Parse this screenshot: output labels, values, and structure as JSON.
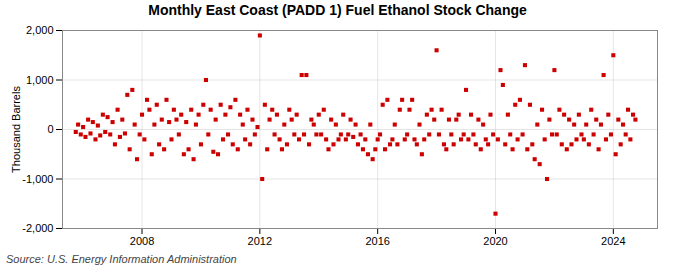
{
  "chart_data": {
    "type": "scatter",
    "title": "Monthly East Coast (PADD 1) Fuel Ethanol Stock Change",
    "ylabel": "Thousand Barrels",
    "source": "Source: U.S. Energy Information Administration",
    "color": "#cc0000",
    "marker": "square",
    "grid": true,
    "xlim": [
      2005.3,
      2025.5
    ],
    "xticks": [
      2008,
      2012,
      2016,
      2020,
      2024
    ],
    "ylim": [
      -2000,
      2000
    ],
    "yticks": [
      {
        "value": -2000,
        "label": "-2,000"
      },
      {
        "value": -1000,
        "label": "-1,000"
      },
      0,
      {
        "value": 1000,
        "label": "1,000"
      },
      {
        "value": 2000,
        "label": "2,000"
      }
    ],
    "x": [
      2005.75,
      2005.83,
      2005.92,
      2006,
      2006.08,
      2006.17,
      2006.25,
      2006.33,
      2006.42,
      2006.5,
      2006.58,
      2006.67,
      2006.75,
      2006.83,
      2006.92,
      2007,
      2007.08,
      2007.17,
      2007.25,
      2007.33,
      2007.42,
      2007.5,
      2007.58,
      2007.67,
      2007.75,
      2007.83,
      2007.92,
      2008,
      2008.08,
      2008.17,
      2008.25,
      2008.33,
      2008.42,
      2008.5,
      2008.58,
      2008.67,
      2008.75,
      2008.83,
      2008.92,
      2009,
      2009.08,
      2009.17,
      2009.25,
      2009.33,
      2009.42,
      2009.5,
      2009.58,
      2009.67,
      2009.75,
      2009.83,
      2009.92,
      2010,
      2010.08,
      2010.17,
      2010.25,
      2010.33,
      2010.42,
      2010.5,
      2010.58,
      2010.67,
      2010.75,
      2010.83,
      2010.92,
      2011,
      2011.08,
      2011.17,
      2011.25,
      2011.33,
      2011.42,
      2011.5,
      2011.58,
      2011.67,
      2011.75,
      2011.83,
      2011.92,
      2012,
      2012.08,
      2012.17,
      2012.25,
      2012.33,
      2012.42,
      2012.5,
      2012.58,
      2012.67,
      2012.75,
      2012.83,
      2012.92,
      2013,
      2013.08,
      2013.17,
      2013.25,
      2013.33,
      2013.42,
      2013.5,
      2013.58,
      2013.67,
      2013.75,
      2013.83,
      2013.92,
      2014,
      2014.08,
      2014.17,
      2014.25,
      2014.33,
      2014.42,
      2014.5,
      2014.58,
      2014.67,
      2014.75,
      2014.83,
      2014.92,
      2015,
      2015.08,
      2015.17,
      2015.25,
      2015.33,
      2015.42,
      2015.5,
      2015.58,
      2015.67,
      2015.75,
      2015.83,
      2015.92,
      2016,
      2016.08,
      2016.17,
      2016.25,
      2016.33,
      2016.42,
      2016.5,
      2016.58,
      2016.67,
      2016.75,
      2016.83,
      2016.92,
      2017,
      2017.08,
      2017.17,
      2017.25,
      2017.33,
      2017.42,
      2017.5,
      2017.58,
      2017.67,
      2017.75,
      2017.83,
      2017.92,
      2018,
      2018.08,
      2018.17,
      2018.25,
      2018.33,
      2018.42,
      2018.5,
      2018.58,
      2018.67,
      2018.75,
      2018.83,
      2018.92,
      2019,
      2019.08,
      2019.17,
      2019.25,
      2019.33,
      2019.42,
      2019.5,
      2019.58,
      2019.67,
      2019.75,
      2019.83,
      2019.92,
      2020,
      2020.08,
      2020.17,
      2020.25,
      2020.33,
      2020.42,
      2020.5,
      2020.58,
      2020.67,
      2020.75,
      2020.83,
      2020.92,
      2021,
      2021.08,
      2021.17,
      2021.25,
      2021.33,
      2021.42,
      2021.5,
      2021.58,
      2021.67,
      2021.75,
      2021.83,
      2021.92,
      2022,
      2022.08,
      2022.17,
      2022.25,
      2022.33,
      2022.42,
      2022.5,
      2022.58,
      2022.67,
      2022.75,
      2022.83,
      2022.92,
      2023,
      2023.08,
      2023.17,
      2023.25,
      2023.33,
      2023.42,
      2023.5,
      2023.58,
      2023.67,
      2023.75,
      2023.83,
      2023.92,
      2024,
      2024.08,
      2024.17,
      2024.25,
      2024.33,
      2024.42,
      2024.5,
      2024.58,
      2024.67,
      2024.75
    ],
    "values": [
      -50,
      100,
      -100,
      50,
      -150,
      200,
      -80,
      150,
      -200,
      80,
      -120,
      300,
      -50,
      250,
      -100,
      150,
      -300,
      400,
      -150,
      200,
      -80,
      700,
      -400,
      800,
      100,
      -600,
      -100,
      300,
      -200,
      600,
      400,
      -500,
      100,
      500,
      -300,
      200,
      -400,
      600,
      150,
      -200,
      400,
      200,
      -100,
      300,
      -500,
      150,
      -400,
      400,
      -600,
      100,
      300,
      -300,
      500,
      1000,
      -100,
      400,
      -450,
      200,
      -500,
      500,
      -200,
      300,
      -100,
      450,
      -300,
      600,
      -400,
      300,
      100,
      -200,
      400,
      -300,
      200,
      -100,
      50,
      1900,
      -1000,
      500,
      -400,
      200,
      400,
      -100,
      300,
      -200,
      -400,
      100,
      -300,
      400,
      200,
      -100,
      300,
      -200,
      1100,
      -100,
      1100,
      -300,
      200,
      100,
      -100,
      300,
      -100,
      400,
      -200,
      -400,
      200,
      -300,
      100,
      -200,
      -100,
      300,
      -200,
      -100,
      200,
      -150,
      100,
      -300,
      -100,
      -400,
      -200,
      -500,
      100,
      -600,
      -400,
      -200,
      -100,
      500,
      -400,
      600,
      -300,
      -200,
      100,
      -300,
      400,
      600,
      -200,
      -100,
      400,
      600,
      -200,
      -300,
      100,
      -500,
      -200,
      300,
      -100,
      400,
      200,
      1600,
      -100,
      400,
      -300,
      -400,
      200,
      -100,
      -300,
      200,
      300,
      -200,
      -100,
      800,
      -200,
      300,
      -100,
      -300,
      200,
      -400,
      100,
      -200,
      -300,
      300,
      -100,
      -1700,
      -200,
      1200,
      900,
      -300,
      300,
      -100,
      -400,
      500,
      -200,
      600,
      -100,
      1300,
      -400,
      500,
      -300,
      -600,
      100,
      -700,
      400,
      -200,
      -1000,
      200,
      -100,
      1200,
      -100,
      400,
      -300,
      300,
      -400,
      200,
      -300,
      100,
      -200,
      300,
      -100,
      -200,
      100,
      -300,
      400,
      -100,
      200,
      -400,
      100,
      1100,
      -200,
      300,
      -100,
      1500,
      -500,
      200,
      -300,
      100,
      -100,
      400,
      -200,
      300,
      200
    ]
  }
}
